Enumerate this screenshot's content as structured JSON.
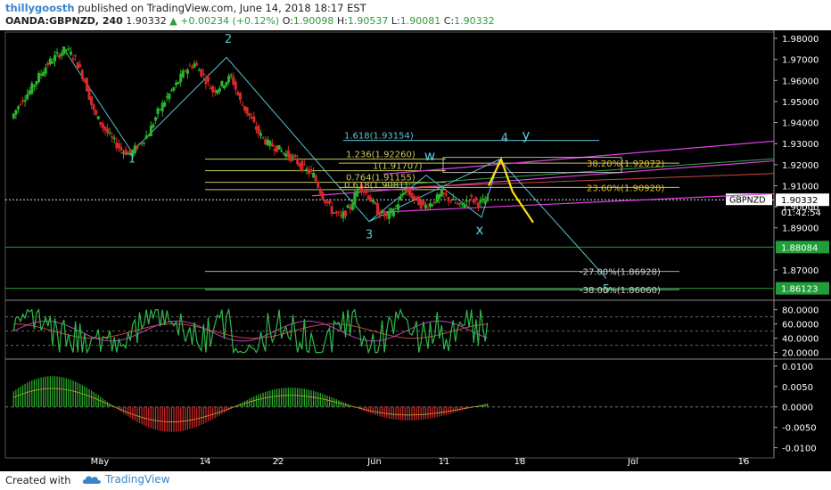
{
  "header": {
    "author": "thillygoosth",
    "published_text": "published on TradingView.com, June 14, 2018 18:17 EST",
    "symbol": "OANDA:GBPNZD, 240",
    "last": "1.90332",
    "change": "+0.00234 (+0.12%)",
    "open_label": "O:",
    "open": "1.90098",
    "high_label": "H:",
    "high": "1.90537",
    "low_label": "L:",
    "low": "1.90081",
    "close_label": "C:",
    "close": "1.90332"
  },
  "footer": {
    "created_with": "Created with",
    "brand": "TradingView"
  },
  "colors": {
    "up": "#26a69a",
    "green_candle": "#2bb52b",
    "red_candle": "#d62a2a",
    "fib_cyan": "#5bc0d0",
    "magenta": "#e040e0",
    "yellow": "#ffe000",
    "green_line": "#1f9e3a"
  },
  "chart_data": {
    "type": "candlestick",
    "price_axis": {
      "ticks": [
        "1.98000",
        "1.97000",
        "1.96000",
        "1.95000",
        "1.94000",
        "1.93000",
        "1.92000",
        "1.91000",
        "1.90000",
        "1.89000",
        "1.87000"
      ],
      "current_price": "1.90332",
      "countdown": "01:42:54",
      "symbol_tag": "GBPNZD",
      "green_levels": [
        "1.88084",
        "1.86123"
      ],
      "range": [
        1.856,
        1.983
      ]
    },
    "time_axis": {
      "labels": [
        "May",
        "14",
        "22",
        "Jun",
        "11",
        "18",
        "Jul",
        "16"
      ]
    },
    "close_series": [
      1.942,
      1.95,
      1.955,
      1.962,
      1.968,
      1.972,
      1.975,
      1.97,
      1.96,
      1.945,
      1.938,
      1.932,
      1.927,
      1.925,
      1.93,
      1.935,
      1.945,
      1.952,
      1.958,
      1.965,
      1.968,
      1.962,
      1.955,
      1.958,
      1.962,
      1.95,
      1.943,
      1.935,
      1.93,
      1.928,
      1.925,
      1.922,
      1.918,
      1.915,
      1.905,
      1.898,
      1.895,
      1.9,
      1.91,
      1.905,
      1.898,
      1.895,
      1.9,
      1.908,
      1.904,
      1.9,
      1.902,
      1.906,
      1.903,
      1.9,
      1.904,
      1.902,
      1.903
    ],
    "wave_labels": [
      "1",
      "2",
      "3",
      "4",
      "5",
      "w",
      "x",
      "y"
    ],
    "fib_labels": [
      {
        "text": "1.618(1.93154)",
        "price": 1.9315
      },
      {
        "text": "1.236(1.92260)",
        "price": 1.9226
      },
      {
        "text": "1(1.91707)",
        "price": 1.9171
      },
      {
        "text": "0.764(1.91155)",
        "price": 1.9116
      },
      {
        "text": "0.618(1.9081)",
        "price": 1.9081
      }
    ],
    "retracements": [
      {
        "text": "38.20%(1.92072)",
        "price": 1.9207
      },
      {
        "text": "23.60%(1.90920)",
        "price": 1.9092
      },
      {
        "text": "-27.00%(1.86928)",
        "price": 1.8693
      },
      {
        "text": "-38.00%(1.86060)",
        "price": 1.8606
      }
    ],
    "rsi_panel": {
      "ticks": [
        "80.0000",
        "60.0000",
        "40.0000",
        "20.0000"
      ],
      "range": [
        12,
        92
      ]
    },
    "macd_panel": {
      "ticks": [
        "0.0100",
        "0.0050",
        "0.0000",
        "-0.0050",
        "-0.0100"
      ],
      "range": [
        -0.0125,
        0.0115
      ]
    }
  }
}
